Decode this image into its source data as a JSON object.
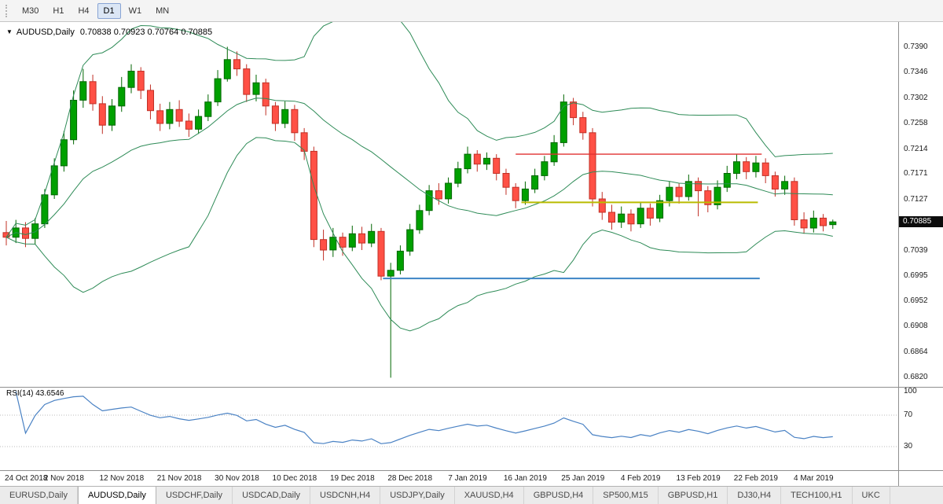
{
  "toolbar": {
    "timeframes": [
      {
        "label": "M30",
        "active": false
      },
      {
        "label": "H1",
        "active": false
      },
      {
        "label": "H4",
        "active": false
      },
      {
        "label": "D1",
        "active": true
      },
      {
        "label": "W1",
        "active": false
      },
      {
        "label": "MN",
        "active": false
      }
    ]
  },
  "chart": {
    "symbol_label": "AUDUSD,Daily",
    "ohlc_text": "0.70838 0.70923 0.70764 0.70885",
    "current_price": "0.70885",
    "indicator_label": "RSI(14) 43.6546"
  },
  "price_axis": {
    "labels": [
      "0.7390",
      "0.7346",
      "0.7302",
      "0.7258",
      "0.7214",
      "0.7171",
      "0.7127",
      "0.7083",
      "0.7039",
      "0.6995",
      "0.6952",
      "0.6908",
      "0.6864",
      "0.6820"
    ]
  },
  "rsi_axis": {
    "labels": [
      "100",
      "70",
      "30"
    ],
    "label_values": [
      100,
      70,
      30
    ],
    "grid_levels": [
      70,
      30
    ]
  },
  "time_axis": {
    "labels": [
      "24 Oct 2018",
      "2 Nov 2018",
      "12 Nov 2018",
      "21 Nov 2018",
      "30 Nov 2018",
      "10 Dec 2018",
      "19 Dec 2018",
      "28 Dec 2018",
      "7 Jan 2019",
      "16 Jan 2019",
      "25 Jan 2019",
      "4 Feb 2019",
      "13 Feb 2019",
      "22 Feb 2019",
      "4 Mar 2019"
    ],
    "tick_every": 6
  },
  "tabs": {
    "items": [
      {
        "label": "EURUSD,Daily",
        "active": false
      },
      {
        "label": "AUDUSD,Daily",
        "active": true
      },
      {
        "label": "USDCHF,Daily",
        "active": false
      },
      {
        "label": "USDCAD,Daily",
        "active": false
      },
      {
        "label": "USDCNH,H4",
        "active": false
      },
      {
        "label": "USDJPY,Daily",
        "active": false
      },
      {
        "label": "XAUUSD,H4",
        "active": false
      },
      {
        "label": "GBPUSD,H4",
        "active": false
      },
      {
        "label": "SP500,M15",
        "active": false
      },
      {
        "label": "GBPUSD,H1",
        "active": false
      },
      {
        "label": "DJ30,H4",
        "active": false
      },
      {
        "label": "TECH100,H1",
        "active": false
      },
      {
        "label": "UKC",
        "active": false
      }
    ]
  },
  "colors": {
    "bull_fill": "#00A000",
    "bull_stroke": "#006600",
    "bear_fill": "#FF5045",
    "bear_stroke": "#C03026",
    "bollinger": "#2E8B57",
    "rsi_line": "#4A82C4",
    "rsi_grid": "#BBBBBB",
    "badge_bg": "#0C0C0C"
  },
  "chart_data": {
    "type": "candlestick",
    "title": "AUDUSD,Daily",
    "ohlc_display": [
      0.70838,
      0.70923,
      0.70764,
      0.70885
    ],
    "y_range": [
      0.6807,
      0.743
    ],
    "y_tick_step": 0.0044,
    "x_labels_every": 6,
    "price_scale_divisor": 100000,
    "candles": [
      [
        70700,
        70900,
        70480,
        70620
      ],
      [
        70620,
        70920,
        70520,
        70780
      ],
      [
        70780,
        70880,
        70450,
        70600
      ],
      [
        70600,
        70950,
        70500,
        70850
      ],
      [
        70850,
        71450,
        70780,
        71350
      ],
      [
        71350,
        71980,
        71280,
        71850
      ],
      [
        71850,
        72450,
        71750,
        72300
      ],
      [
        72300,
        73150,
        72220,
        72980
      ],
      [
        72980,
        73520,
        72850,
        73300
      ],
      [
        73300,
        73420,
        72800,
        72920
      ],
      [
        72920,
        73050,
        72400,
        72550
      ],
      [
        72550,
        73000,
        72450,
        72880
      ],
      [
        72880,
        73380,
        72780,
        73200
      ],
      [
        73200,
        73600,
        73100,
        73480
      ],
      [
        73480,
        73550,
        73000,
        73150
      ],
      [
        73150,
        73250,
        72650,
        72800
      ],
      [
        72800,
        72920,
        72450,
        72580
      ],
      [
        72580,
        72950,
        72480,
        72820
      ],
      [
        72820,
        72980,
        72520,
        72620
      ],
      [
        72620,
        72750,
        72350,
        72480
      ],
      [
        72480,
        72820,
        72400,
        72700
      ],
      [
        72700,
        73080,
        72620,
        72950
      ],
      [
        72950,
        73500,
        72880,
        73350
      ],
      [
        73350,
        73900,
        73300,
        73680
      ],
      [
        73680,
        73820,
        73400,
        73520
      ],
      [
        73520,
        73600,
        72950,
        73080
      ],
      [
        73080,
        73420,
        72960,
        73280
      ],
      [
        73280,
        73350,
        72720,
        72880
      ],
      [
        72880,
        72950,
        72450,
        72580
      ],
      [
        72580,
        72960,
        72500,
        72820
      ],
      [
        72820,
        72900,
        72280,
        72420
      ],
      [
        72420,
        72500,
        71950,
        72100
      ],
      [
        72100,
        72180,
        70450,
        70580
      ],
      [
        70580,
        70750,
        70220,
        70400
      ],
      [
        70400,
        70780,
        70280,
        70620
      ],
      [
        70620,
        70700,
        70300,
        70450
      ],
      [
        70450,
        70820,
        70380,
        70680
      ],
      [
        70680,
        70800,
        70400,
        70520
      ],
      [
        70520,
        70850,
        70450,
        70720
      ],
      [
        70720,
        70780,
        69880,
        69950
      ],
      [
        69950,
        70180,
        68200,
        70050
      ],
      [
        70050,
        70480,
        69980,
        70380
      ],
      [
        70380,
        70850,
        70300,
        70750
      ],
      [
        70750,
        71180,
        70680,
        71080
      ],
      [
        71080,
        71520,
        71000,
        71420
      ],
      [
        71420,
        71550,
        71180,
        71280
      ],
      [
        71280,
        71650,
        71200,
        71550
      ],
      [
        71550,
        71920,
        71480,
        71800
      ],
      [
        71800,
        72180,
        71720,
        72050
      ],
      [
        72050,
        72120,
        71750,
        71880
      ],
      [
        71880,
        72080,
        71780,
        71980
      ],
      [
        71980,
        72050,
        71600,
        71720
      ],
      [
        71720,
        71800,
        71350,
        71480
      ],
      [
        71480,
        71550,
        71120,
        71250
      ],
      [
        71250,
        71580,
        71180,
        71450
      ],
      [
        71450,
        71800,
        71380,
        71680
      ],
      [
        71680,
        72020,
        71600,
        71920
      ],
      [
        71920,
        72380,
        71850,
        72250
      ],
      [
        72250,
        73080,
        72180,
        72950
      ],
      [
        72950,
        73020,
        72550,
        72680
      ],
      [
        72680,
        72780,
        72300,
        72420
      ],
      [
        72420,
        72500,
        71150,
        71280
      ],
      [
        71280,
        71400,
        70920,
        71050
      ],
      [
        71050,
        71180,
        70750,
        70880
      ],
      [
        70880,
        71150,
        70780,
        71020
      ],
      [
        71020,
        71100,
        70720,
        70850
      ],
      [
        70850,
        71220,
        70780,
        71120
      ],
      [
        71120,
        71200,
        70820,
        70950
      ],
      [
        70950,
        71350,
        70880,
        71250
      ],
      [
        71250,
        71580,
        71150,
        71480
      ],
      [
        71480,
        71550,
        71200,
        71320
      ],
      [
        71320,
        71700,
        71250,
        71580
      ],
      [
        71580,
        71650,
        70980,
        71420
      ],
      [
        71420,
        71500,
        71050,
        71180
      ],
      [
        71180,
        71600,
        71100,
        71480
      ],
      [
        71480,
        71850,
        71400,
        71720
      ],
      [
        71720,
        72050,
        71620,
        71920
      ],
      [
        71920,
        72000,
        71620,
        71750
      ],
      [
        71750,
        72020,
        71650,
        71900
      ],
      [
        71900,
        71980,
        71550,
        71680
      ],
      [
        71680,
        71750,
        71320,
        71450
      ],
      [
        71450,
        71680,
        71350,
        71580
      ],
      [
        71580,
        71650,
        70820,
        70920
      ],
      [
        70920,
        71050,
        70680,
        70780
      ],
      [
        70780,
        71080,
        70700,
        70950
      ],
      [
        70950,
        71020,
        70720,
        70820
      ],
      [
        70838,
        70923,
        70764,
        70885
      ]
    ],
    "indicators": [
      {
        "name": "Bollinger Bands",
        "period": 20,
        "deviation": 2
      },
      {
        "name": "RSI",
        "period": 14,
        "current_value": 43.6546,
        "range": [
          0,
          100
        ],
        "levels": [
          70,
          30
        ]
      }
    ],
    "hlines": [
      {
        "name": "resistance-red",
        "price": 0.7205,
        "from_index": 53.0,
        "to_index": 78.6,
        "color": "#E03131",
        "width": 1.4
      },
      {
        "name": "pivot-yellow",
        "price": 0.7122,
        "from_index": 53.6,
        "to_index": 78.2,
        "color": "#B9BB00",
        "width": 2
      },
      {
        "name": "support-blue",
        "price": 0.6991,
        "from_index": 39.2,
        "to_index": 78.4,
        "color": "#3D85C6",
        "width": 2
      }
    ]
  }
}
